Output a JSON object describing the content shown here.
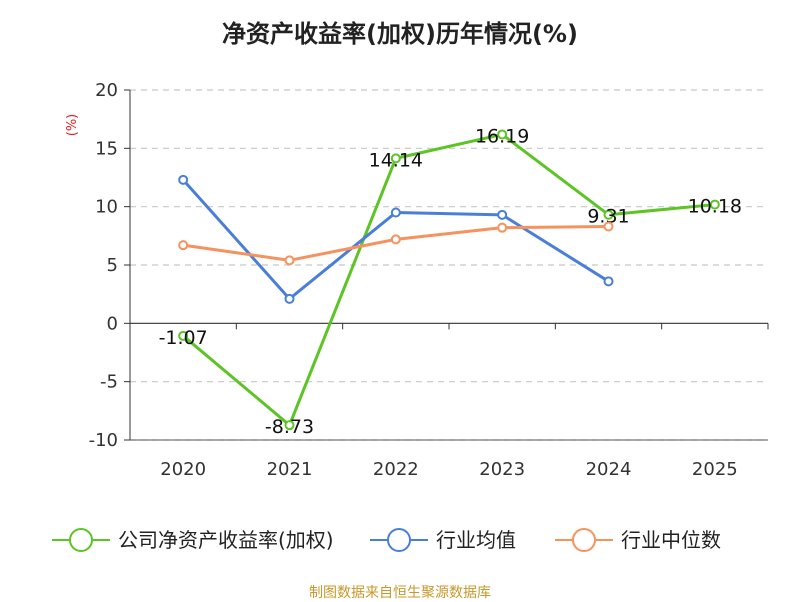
{
  "title": "净资产收益率(加权)历年情况(%)",
  "source": "制图数据来自恒生聚源数据库",
  "chart_data": {
    "type": "line",
    "title": "净资产收益率(加权)历年情况(%)",
    "ylabel": "(%)",
    "ylim": [
      -10,
      20
    ],
    "yticks": [
      20,
      15,
      10,
      5,
      0,
      -5,
      -10
    ],
    "categories": [
      "2020",
      "2021",
      "2022",
      "2023",
      "2024",
      "2025"
    ],
    "grid": true,
    "legend_position": "bottom",
    "series": [
      {
        "name": "公司净资产收益率(加权)",
        "color": "#5cc424",
        "values": [
          -1.07,
          -8.73,
          14.14,
          16.19,
          9.31,
          10.18
        ],
        "labels": [
          "-1.07",
          "-8.73",
          "14.14",
          "16.19",
          "9.31",
          "10.18"
        ]
      },
      {
        "name": "行业均值",
        "color": "#4a7fd8",
        "values": [
          12.3,
          2.1,
          9.5,
          9.3,
          3.6,
          null
        ]
      },
      {
        "name": "行业中位数",
        "color": "#f5925e",
        "values": [
          6.7,
          5.4,
          7.2,
          8.2,
          8.3,
          null
        ]
      }
    ]
  }
}
